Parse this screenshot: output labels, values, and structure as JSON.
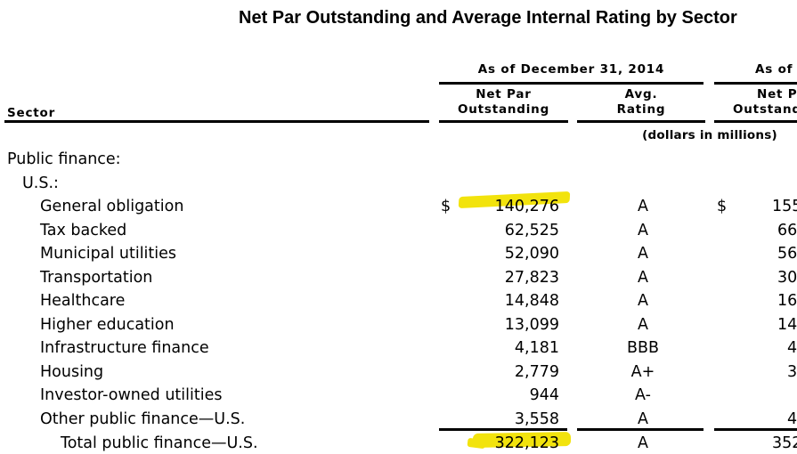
{
  "title": "Net Par Outstanding and Average Internal Rating by Sector",
  "colors": {
    "background": "#ffffff",
    "text": "#000000",
    "highlight_yellow": "#f2e30d"
  },
  "table": {
    "sector_header": "Sector",
    "units_note": "(dollars in millions)",
    "dollar_sign": "$",
    "group_2014": {
      "label": "As of December 31, 2014",
      "col_net_par_line1": "Net Par",
      "col_net_par_line2": "Outstanding",
      "col_avg_line1": "Avg.",
      "col_avg_line2": "Rating"
    },
    "group_2013_truncated": {
      "label_visible": "As of",
      "col_net_par_line1_visible": "Net Pa",
      "col_net_par_line2_visible": "Outstand"
    },
    "rows": [
      {
        "label": "Public finance:",
        "indent": 0
      },
      {
        "label": "U.S.:",
        "indent": 1
      },
      {
        "label": "General obligation",
        "indent": 2,
        "dollar_2014": true,
        "net_par_2014": "140,276",
        "rating": "A",
        "dollar_2013": true,
        "net_par_2013_visible": "155",
        "highlight": true
      },
      {
        "label": "Tax backed",
        "indent": 2,
        "net_par_2014": "62,525",
        "rating": "A",
        "net_par_2013_visible": "66"
      },
      {
        "label": "Municipal utilities",
        "indent": 2,
        "net_par_2014": "52,090",
        "rating": "A",
        "net_par_2013_visible": "56"
      },
      {
        "label": "Transportation",
        "indent": 2,
        "net_par_2014": "27,823",
        "rating": "A",
        "net_par_2013_visible": "30"
      },
      {
        "label": "Healthcare",
        "indent": 2,
        "net_par_2014": "14,848",
        "rating": "A",
        "net_par_2013_visible": "16"
      },
      {
        "label": "Higher education",
        "indent": 2,
        "net_par_2014": "13,099",
        "rating": "A",
        "net_par_2013_visible": "14"
      },
      {
        "label": "Infrastructure finance",
        "indent": 2,
        "net_par_2014": "4,181",
        "rating": "BBB",
        "net_par_2013_visible": "4"
      },
      {
        "label": "Housing",
        "indent": 2,
        "net_par_2014": "2,779",
        "rating": "A+",
        "net_par_2013_visible": "3"
      },
      {
        "label": "Investor-owned utilities",
        "indent": 2,
        "net_par_2014": "944",
        "rating": "A-",
        "net_par_2013_visible": ""
      },
      {
        "label": "Other public finance—U.S.",
        "indent": 2,
        "net_par_2014": "3,558",
        "rating": "A",
        "net_par_2013_visible": "4"
      },
      {
        "label": "Total public finance—U.S.",
        "indent": 3,
        "net_par_2014": "322,123",
        "rating": "A",
        "net_par_2013_visible": "352",
        "highlight": true,
        "total": true
      }
    ]
  }
}
